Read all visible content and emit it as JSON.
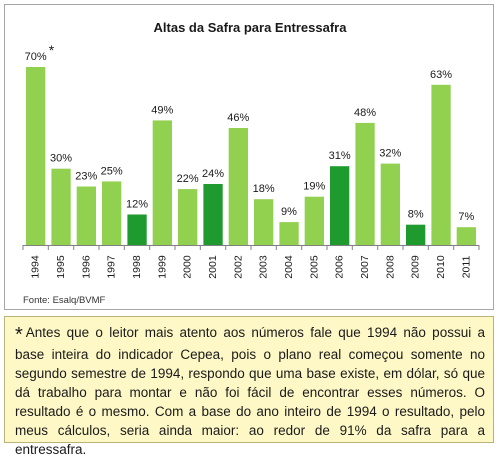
{
  "colors": {
    "regular_bar": "#92d050",
    "highlight_bar": "#1e9a2e",
    "axis": "#808080",
    "note_background": "#fdf8c6"
  },
  "chart_data": {
    "type": "bar",
    "title": "Altas da Safra para Entressafra",
    "categories": [
      "1994",
      "1995",
      "1996",
      "1997",
      "1998",
      "1999",
      "2000",
      "2001",
      "2002",
      "2003",
      "2004",
      "2005",
      "2006",
      "2007",
      "2008",
      "2009",
      "2010",
      "2011"
    ],
    "values": [
      70,
      30,
      23,
      25,
      12,
      49,
      22,
      24,
      46,
      18,
      9,
      19,
      31,
      48,
      32,
      8,
      63,
      7
    ],
    "value_labels": [
      "70%",
      "30%",
      "23%",
      "25%",
      "12%",
      "49%",
      "22%",
      "24%",
      "46%",
      "18%",
      "9%",
      "19%",
      "31%",
      "48%",
      "32%",
      "8%",
      "63%",
      "7%"
    ],
    "highlighted_categories": [
      "1998",
      "2001",
      "2006",
      "2009"
    ],
    "annotation_marker": "*",
    "annotation_category": "1994",
    "ylim": [
      0,
      70
    ],
    "xlabel": "",
    "ylabel": "",
    "source": "Fonte: Esalq/BVMF",
    "grid": false,
    "legend": "none"
  },
  "footnote": {
    "marker": "*",
    "text": "Antes que o leitor mais atento aos números fale que 1994 não possui a base inteira do indicador Cepea, pois o plano real começou somente no segundo semestre de 1994, respondo que uma base existe, em dólar, só que dá trabalho para montar e não foi fácil de encontrar esses números. O resultado é o mesmo. Com a base do ano inteiro de 1994 o resultado, pelo meus cálculos, seria ainda maior: ao redor de 91% da safra para a entressafra."
  }
}
